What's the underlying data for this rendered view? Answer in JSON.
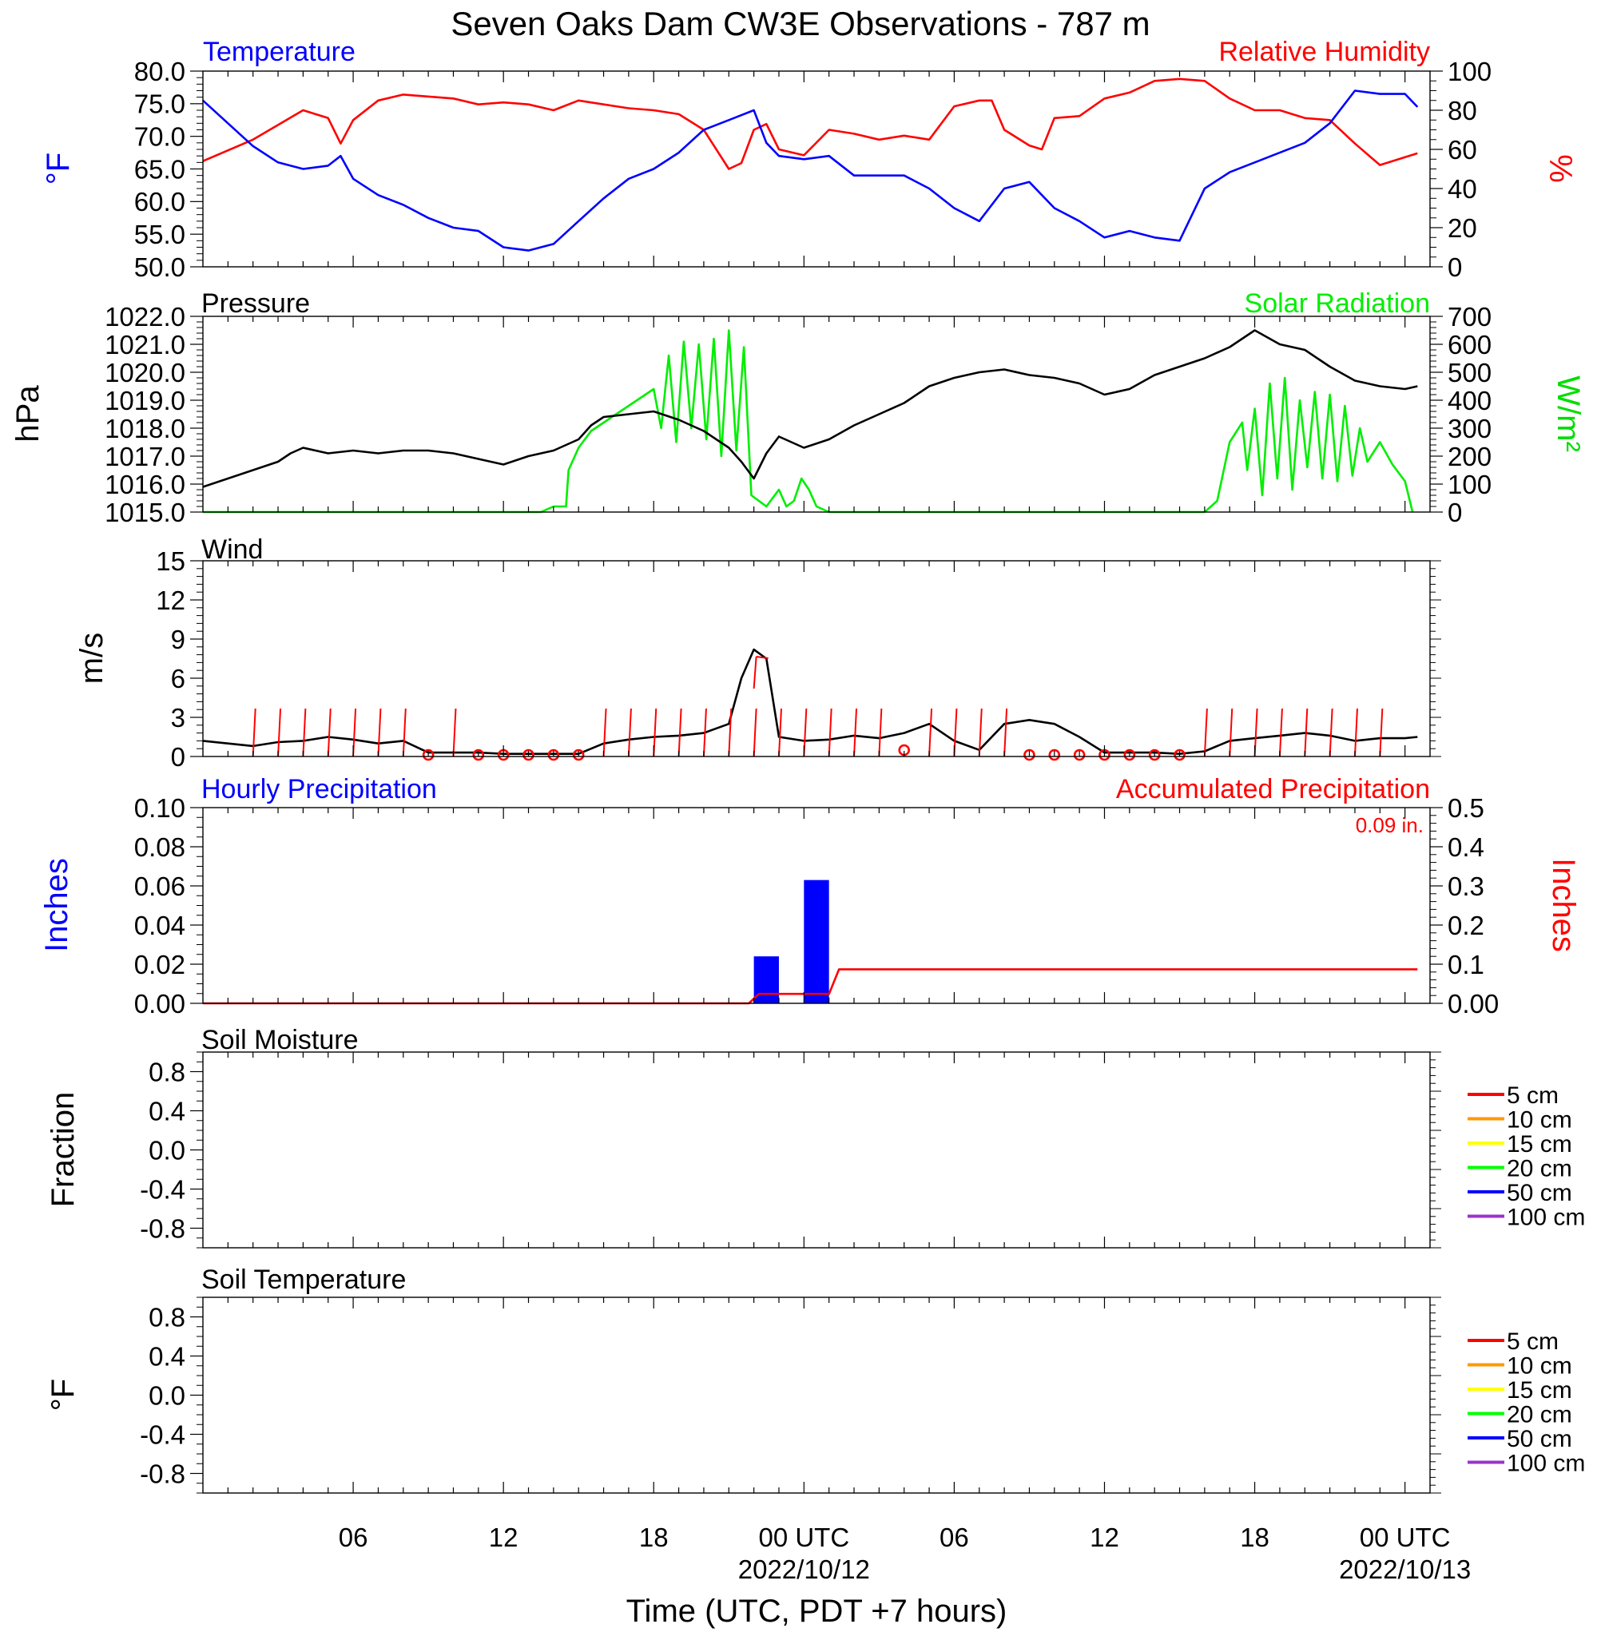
{
  "title": "Seven Oaks Dam CW3E Observations - 787 m",
  "x_axis": {
    "label": "Time (UTC, PDT +7 hours)",
    "major_ticks": [
      {
        "hour": 6,
        "label": "06",
        "date": ""
      },
      {
        "hour": 12,
        "label": "12",
        "date": ""
      },
      {
        "hour": 18,
        "label": "18",
        "date": ""
      },
      {
        "hour": 24,
        "label": "00 UTC",
        "date": "2022/10/12"
      },
      {
        "hour": 30,
        "label": "06",
        "date": ""
      },
      {
        "hour": 36,
        "label": "12",
        "date": ""
      },
      {
        "hour": 42,
        "label": "18",
        "date": ""
      },
      {
        "hour": 48,
        "label": "00 UTC",
        "date": "2022/10/13"
      }
    ]
  },
  "colors": {
    "temperature": "#0000ff",
    "humidity": "#ff0000",
    "pressure": "#000000",
    "solar": "#00ff00",
    "wind": "#000000",
    "barb": "#ff0000",
    "hourly_precip": "#0000ff",
    "accum_precip": "#ff0000",
    "soil_5": "#ff0000",
    "soil_10": "#ff9900",
    "soil_15": "#ffff00",
    "soil_20": "#00ff00",
    "soil_50": "#0000ff",
    "soil_100": "#9933cc"
  },
  "panels": {
    "temp_rh": {
      "left_title": "Temperature",
      "right_title": "Relative Humidity",
      "left_ylabel": "°F",
      "right_ylabel": "%",
      "left_ticks": [
        "80.0",
        "75.0",
        "70.0",
        "65.0",
        "60.0",
        "55.0",
        "50.0"
      ],
      "right_ticks": [
        "100",
        "80",
        "60",
        "40",
        "20",
        "0"
      ]
    },
    "pressure_solar": {
      "left_title": "Pressure",
      "right_title": "Solar Radiation",
      "left_ylabel": "hPa",
      "right_ylabel": "W/m²",
      "left_ticks": [
        "1022.0",
        "1021.0",
        "1020.0",
        "1019.0",
        "1018.0",
        "1017.0",
        "1016.0",
        "1015.0"
      ],
      "right_ticks": [
        "700",
        "600",
        "500",
        "400",
        "300",
        "200",
        "100",
        "0"
      ]
    },
    "wind": {
      "left_title": "Wind",
      "left_ylabel": "m/s",
      "left_ticks": [
        "15",
        "12",
        "9",
        "6",
        "3",
        "0"
      ]
    },
    "precip": {
      "left_title": "Hourly Precipitation",
      "right_title": "Accumulated Precipitation",
      "total_label": "0.09 in.",
      "left_ylabel": "Inches",
      "right_ylabel": "Inches",
      "left_ticks": [
        "0.10",
        "0.08",
        "0.06",
        "0.04",
        "0.02",
        "0.00"
      ],
      "right_ticks": [
        "0.5",
        "0.4",
        "0.3",
        "0.2",
        "0.1",
        "0.00"
      ]
    },
    "soil_moisture": {
      "left_title": "Soil Moisture",
      "left_ylabel": "Fraction",
      "left_ticks": [
        "0.8",
        "0.4",
        "0.0",
        "-0.4",
        "-0.8"
      ]
    },
    "soil_temperature": {
      "left_title": "Soil Temperature",
      "left_ylabel": "°F",
      "left_ticks": [
        "0.8",
        "0.4",
        "0.0",
        "-0.4",
        "-0.8"
      ]
    }
  },
  "soil_legend": [
    "5 cm",
    "10 cm",
    "15 cm",
    "20 cm",
    "50 cm",
    "100 cm"
  ],
  "chart_data": [
    {
      "type": "line",
      "name": "Temperature",
      "x_unit": "hours since 2022/10/11 00 UTC",
      "xlim": [
        0,
        49
      ],
      "ylim": [
        50,
        80
      ],
      "ylabel": "°F",
      "x": [
        0,
        1,
        2,
        3,
        4,
        5,
        5.5,
        6,
        7,
        8,
        9,
        10,
        11,
        12,
        13,
        14,
        15,
        16,
        17,
        18,
        19,
        20,
        21,
        22,
        22.5,
        23,
        24,
        25,
        26,
        27,
        28,
        29,
        30,
        31,
        32,
        33,
        34,
        35,
        36,
        37,
        38,
        39,
        40,
        41,
        42,
        43,
        44,
        45,
        46,
        47,
        48,
        48.5
      ],
      "y": [
        75.5,
        72,
        68.5,
        66,
        65,
        65.5,
        67,
        63.5,
        61,
        59.5,
        57.5,
        56,
        55.5,
        53,
        52.5,
        53.5,
        57,
        60.5,
        63.5,
        65,
        67.5,
        71,
        72.5,
        74,
        69,
        67,
        66.5,
        67,
        64,
        64,
        64,
        62,
        59,
        57,
        62,
        63,
        59,
        57,
        54.5,
        55.5,
        54.5,
        54,
        62,
        64.5,
        66,
        67.5,
        69,
        72,
        77,
        76.5,
        76.5,
        74.5
      ]
    },
    {
      "type": "line",
      "name": "Relative Humidity",
      "x_unit": "hours since 2022/10/11 00 UTC",
      "xlim": [
        0,
        49
      ],
      "ylim": [
        0,
        100
      ],
      "ylabel": "%",
      "x": [
        0,
        2,
        4,
        5,
        5.5,
        6,
        7,
        8,
        10,
        11,
        12,
        13,
        14,
        15,
        16,
        17,
        18,
        19,
        20,
        21,
        21.5,
        22,
        22.5,
        23,
        24,
        25,
        26,
        27,
        28,
        29,
        30,
        31,
        31.5,
        32,
        33,
        33.5,
        34,
        35,
        36,
        37,
        38,
        39,
        40,
        41,
        42,
        43,
        44,
        45,
        46,
        47,
        48,
        48.5
      ],
      "y": [
        54,
        65,
        80,
        76,
        63,
        75,
        85,
        88,
        86,
        83,
        84,
        83,
        80,
        85,
        83,
        81,
        80,
        78,
        70,
        50,
        53,
        70,
        73,
        60,
        57,
        70,
        68,
        65,
        67,
        65,
        82,
        85,
        85,
        70,
        62,
        60,
        76,
        77,
        86,
        89,
        95,
        96,
        95,
        86,
        80,
        80,
        76,
        75,
        63,
        52,
        56,
        58
      ]
    },
    {
      "type": "line",
      "name": "Pressure",
      "x_unit": "hours since 2022/10/11 00 UTC",
      "xlim": [
        0,
        49
      ],
      "ylim": [
        1015,
        1022
      ],
      "ylabel": "hPa",
      "x": [
        0,
        2,
        3,
        3.5,
        4,
        5,
        6,
        7,
        8,
        9,
        10,
        11,
        12,
        13,
        14,
        15,
        15.5,
        16,
        17,
        18,
        19,
        20,
        21,
        21.5,
        22,
        22.5,
        23,
        24,
        25,
        26,
        27,
        28,
        29,
        30,
        31,
        32,
        33,
        34,
        35,
        36,
        37,
        38,
        39,
        40,
        41,
        41.5,
        42,
        43,
        44,
        45,
        46,
        47,
        48,
        48.5
      ],
      "y": [
        1015.9,
        1016.5,
        1016.8,
        1017.1,
        1017.3,
        1017.1,
        1017.2,
        1017.1,
        1017.2,
        1017.2,
        1017.1,
        1016.9,
        1016.7,
        1017.0,
        1017.2,
        1017.6,
        1018.1,
        1018.4,
        1018.5,
        1018.6,
        1018.3,
        1017.9,
        1017.3,
        1016.8,
        1016.2,
        1017.1,
        1017.7,
        1017.3,
        1017.6,
        1018.1,
        1018.5,
        1018.9,
        1019.5,
        1019.8,
        1020.0,
        1020.1,
        1019.9,
        1019.8,
        1019.6,
        1019.2,
        1019.4,
        1019.9,
        1020.2,
        1020.5,
        1020.9,
        1021.2,
        1021.5,
        1021.0,
        1020.8,
        1020.2,
        1019.7,
        1019.5,
        1019.4,
        1019.5
      ]
    },
    {
      "type": "line",
      "name": "Solar Radiation",
      "x_unit": "hours since 2022/10/11 00 UTC",
      "xlim": [
        0,
        49
      ],
      "ylim": [
        0,
        700
      ],
      "ylabel": "W/m²",
      "x": [
        0,
        13.5,
        14,
        14.5,
        14.6,
        15,
        15.5,
        16,
        16.5,
        17,
        17.5,
        18,
        18.3,
        18.6,
        18.9,
        19.2,
        19.5,
        19.8,
        20.1,
        20.4,
        20.7,
        21,
        21.3,
        21.6,
        21.9,
        22.2,
        22.5,
        23,
        23.3,
        23.6,
        23.9,
        24.2,
        24.5,
        25,
        25.5,
        26,
        40,
        40.5,
        41,
        41.5,
        41.7,
        42,
        42.3,
        42.6,
        42.9,
        43.2,
        43.5,
        43.8,
        44.1,
        44.4,
        44.7,
        45,
        45.3,
        45.6,
        45.9,
        46.2,
        46.5,
        47,
        47.5,
        48,
        48.3
      ],
      "y": [
        0,
        0,
        20,
        20,
        150,
        230,
        290,
        320,
        350,
        380,
        410,
        440,
        300,
        560,
        250,
        610,
        300,
        600,
        260,
        620,
        200,
        650,
        220,
        590,
        60,
        40,
        20,
        80,
        20,
        40,
        120,
        80,
        20,
        0,
        0,
        0,
        0,
        40,
        250,
        320,
        150,
        370,
        60,
        460,
        120,
        480,
        80,
        400,
        160,
        430,
        120,
        420,
        110,
        380,
        130,
        300,
        180,
        250,
        170,
        110,
        0
      ]
    },
    {
      "type": "line",
      "name": "Wind",
      "x_unit": "hours since 2022/10/11 00 UTC",
      "xlim": [
        0,
        49
      ],
      "ylim": [
        0,
        15
      ],
      "ylabel": "m/s",
      "x": [
        0,
        1,
        2,
        3,
        4,
        5,
        6,
        7,
        8,
        9,
        10,
        11,
        12,
        13,
        14,
        15,
        16,
        17,
        18,
        19,
        20,
        21,
        21.5,
        22,
        22.5,
        23,
        24,
        25,
        26,
        27,
        28,
        29,
        30,
        31,
        32,
        33,
        34,
        35,
        36,
        37,
        38,
        39,
        40,
        41,
        42,
        43,
        44,
        45,
        46,
        47,
        48,
        48.5
      ],
      "y": [
        1.2,
        1.0,
        0.8,
        1.1,
        1.2,
        1.5,
        1.3,
        1.0,
        1.2,
        0.3,
        0.3,
        0.3,
        0.2,
        0.2,
        0.2,
        0.2,
        1.0,
        1.3,
        1.5,
        1.6,
        1.8,
        2.5,
        6.0,
        8.2,
        7.5,
        1.5,
        1.2,
        1.3,
        1.6,
        1.4,
        1.8,
        2.5,
        1.2,
        0.5,
        2.5,
        2.8,
        2.5,
        1.5,
        0.3,
        0.3,
        0.3,
        0.2,
        0.4,
        1.2,
        1.4,
        1.6,
        1.8,
        1.6,
        1.2,
        1.4,
        1.4,
        1.5
      ]
    },
    {
      "type": "bar",
      "name": "Hourly Precipitation",
      "x_unit": "hours since 2022/10/11 00 UTC",
      "x": [
        22.5,
        24.5
      ],
      "values": [
        0.024,
        0.063
      ],
      "ylim": [
        0,
        0.1
      ],
      "ylabel": "Inches"
    },
    {
      "type": "line",
      "name": "Accumulated Precipitation",
      "x_unit": "hours since 2022/10/11 00 UTC",
      "x": [
        0,
        21.8,
        22.2,
        23,
        24,
        25,
        25.4,
        48.5
      ],
      "y": [
        0,
        0,
        0.024,
        0.024,
        0.024,
        0.024,
        0.087,
        0.087
      ],
      "ylim": [
        0,
        0.5
      ],
      "ylabel": "Inches"
    },
    {
      "type": "line",
      "name": "Soil Moisture",
      "series": [],
      "ylim": [
        -1,
        1
      ],
      "ylabel": "Fraction"
    },
    {
      "type": "line",
      "name": "Soil Temperature",
      "series": [],
      "ylim": [
        -1,
        1
      ],
      "ylabel": "°F"
    }
  ]
}
